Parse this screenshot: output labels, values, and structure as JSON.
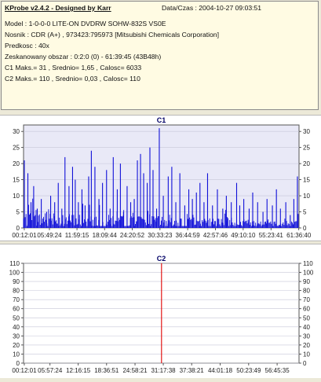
{
  "info": {
    "title": "KProbe v2.4.2 - Designed by Karr",
    "date": "Data/Czas : 2004-10-27 09:03:51",
    "model": "Model : 1-0-0-0 LITE-ON DVDRW SOHW-832S  VS0E",
    "nosnik": "Nosnik : CDR (A+) , 973423:795973 [Mitsubishi Chemicals Corporation]",
    "predkosc": "Predkosc : 40x",
    "obszar": "Zeskanowany obszar : 0:2:0 (0) - 61:39:45 (43B48h)",
    "c1_stats": "C1 Maks.= 31 , Srednio= 1,65 , Calosc= 6033",
    "c2_stats": "C2 Maks.= 110 , Srednio= 0,03 , Calosc= 110"
  },
  "colors": {
    "c1_bars": "#1010d8",
    "c2_bars": "#e00000",
    "panel_bg": "#ffffff",
    "plot_bg": "#e9e9f7",
    "info_bg": "#fffbe3"
  },
  "chart_data": [
    {
      "type": "bar",
      "title": "C1",
      "ylim": [
        0,
        32
      ],
      "y_ticks": [
        0,
        5,
        10,
        15,
        20,
        25,
        30
      ],
      "x_tick_labels": [
        "00:12:01",
        "05:49:24",
        "11:59:15",
        "18:09:44",
        "24:20:52",
        "30:33:23",
        "36:44:59",
        "42:57:46",
        "49:10:10",
        "55:23:41",
        "61:36:40"
      ],
      "x_range": [
        "00:02:00",
        "61:39:45"
      ],
      "series": [
        {
          "values": [
            [
              0.2,
              21
            ],
            [
              1.0,
              17
            ],
            [
              1.7,
              8
            ],
            [
              2.3,
              13
            ],
            [
              3.1,
              6
            ],
            [
              4.0,
              9
            ],
            [
              5.2,
              5
            ],
            [
              6.1,
              10
            ],
            [
              7.0,
              8
            ],
            [
              7.8,
              14
            ],
            [
              8.6,
              6
            ],
            [
              9.3,
              22
            ],
            [
              10.2,
              13
            ],
            [
              11.0,
              19
            ],
            [
              11.6,
              15
            ],
            [
              12.3,
              8
            ],
            [
              13.1,
              12
            ],
            [
              13.8,
              7
            ],
            [
              14.6,
              16
            ],
            [
              15.2,
              24
            ],
            [
              16.0,
              19
            ],
            [
              16.9,
              9
            ],
            [
              17.7,
              14
            ],
            [
              18.6,
              18
            ],
            [
              19.4,
              6
            ],
            [
              20.1,
              22
            ],
            [
              21.0,
              12
            ],
            [
              21.7,
              20
            ],
            [
              22.4,
              5
            ],
            [
              23.2,
              13
            ],
            [
              24.0,
              8
            ],
            [
              24.8,
              9
            ],
            [
              25.5,
              21
            ],
            [
              26.2,
              23
            ],
            [
              26.9,
              17
            ],
            [
              27.7,
              14
            ],
            [
              28.3,
              25
            ],
            [
              29.0,
              18
            ],
            [
              29.8,
              6
            ],
            [
              30.4,
              31
            ],
            [
              31.3,
              10
            ],
            [
              32.4,
              16
            ],
            [
              33.2,
              19
            ],
            [
              34.1,
              8
            ],
            [
              35.0,
              17
            ],
            [
              36.1,
              7
            ],
            [
              37.0,
              12
            ],
            [
              37.8,
              9
            ],
            [
              38.7,
              11
            ],
            [
              39.5,
              14
            ],
            [
              40.4,
              8
            ],
            [
              41.2,
              17
            ],
            [
              42.3,
              7
            ],
            [
              43.4,
              12
            ],
            [
              44.6,
              6
            ],
            [
              45.4,
              10
            ],
            [
              46.5,
              8
            ],
            [
              47.7,
              14
            ],
            [
              48.4,
              7
            ],
            [
              49.3,
              9
            ],
            [
              50.5,
              6
            ],
            [
              51.3,
              11
            ],
            [
              52.4,
              8
            ],
            [
              53.6,
              5
            ],
            [
              54.5,
              9
            ],
            [
              55.7,
              7
            ],
            [
              56.6,
              12
            ],
            [
              57.5,
              6
            ],
            [
              58.7,
              8
            ],
            [
              59.7,
              4
            ],
            [
              60.5,
              9
            ],
            [
              61.3,
              16
            ]
          ]
        }
      ]
    },
    {
      "type": "bar",
      "title": "C2",
      "ylim": [
        0,
        110
      ],
      "y_ticks": [
        0,
        10,
        20,
        30,
        40,
        50,
        60,
        70,
        80,
        90,
        100,
        110
      ],
      "x_tick_labels": [
        "00:12:01",
        "05:57:24",
        "12:16:15",
        "18:36:51",
        "24:58:21",
        "31:17:38",
        "37:38:21",
        "44:01:18",
        "50:23:49",
        "56:45:35"
      ],
      "x_range": [
        "00:02:00",
        "61:39:45"
      ],
      "series": [
        {
          "values": [
            [
              30.9,
              110
            ]
          ]
        }
      ]
    }
  ]
}
